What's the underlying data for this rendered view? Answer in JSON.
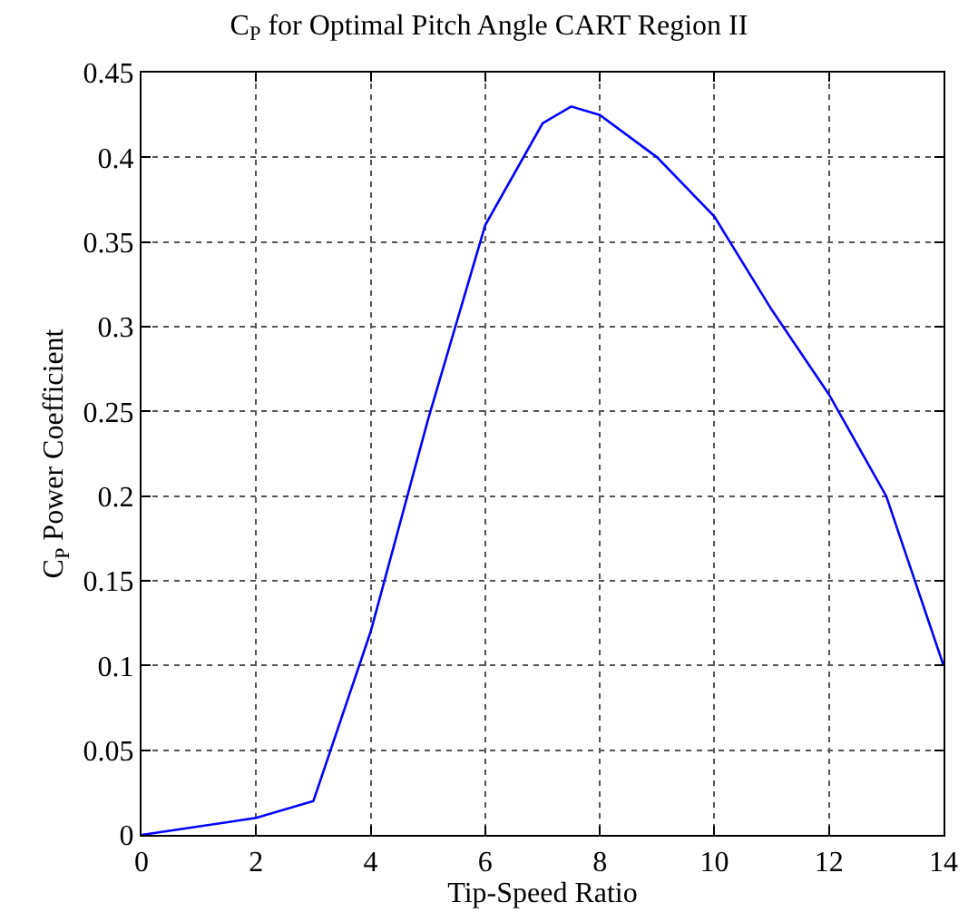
{
  "chart_data": {
    "type": "line",
    "title": "C$_{P}$ for Optimal Pitch Angle CART Region II",
    "xlabel": "Tip-Speed Ratio",
    "ylabel": "C$_{P}$ Power Coefficient",
    "x": [
      0,
      2,
      3,
      4,
      5,
      6,
      7,
      7.5,
      8,
      9,
      10,
      11,
      12,
      13,
      14
    ],
    "series": [
      {
        "color": "#0000ff",
        "values": [
          0,
          0.01,
          0.02,
          0.12,
          0.245,
          0.36,
          0.42,
          0.43,
          0.425,
          0.4,
          0.365,
          0.31,
          0.26,
          0.2,
          0.1
        ]
      }
    ],
    "xlim": [
      0,
      14
    ],
    "xticks": [
      0,
      2,
      4,
      6,
      8,
      10,
      12,
      14
    ],
    "ylim": [
      0,
      0.45
    ],
    "yticks": [
      0,
      0.05,
      0.1,
      0.15,
      0.2,
      0.25,
      0.3,
      0.35,
      0.4,
      0.45
    ],
    "grid": true,
    "line_style": "solid",
    "marker": "none",
    "legend": false
  }
}
